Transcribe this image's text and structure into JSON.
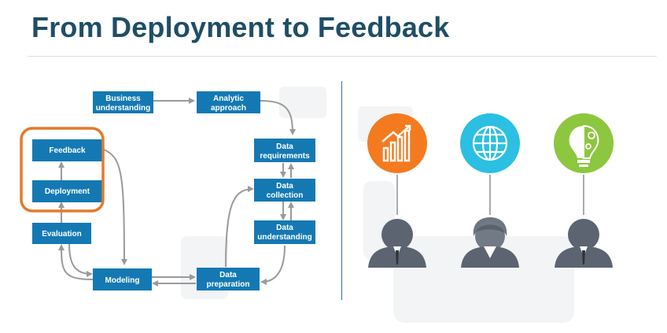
{
  "slide": {
    "title": "From Deployment to Feedback"
  },
  "diagram": {
    "stages": {
      "business_understanding": [
        "Business",
        "understanding"
      ],
      "analytic_approach": [
        "Analytic",
        "approach"
      ],
      "data_requirements": [
        "Data",
        "requirements"
      ],
      "data_collection": [
        "Data",
        "collection"
      ],
      "data_understanding": [
        "Data",
        "understanding"
      ],
      "data_preparation": [
        "Data",
        "preparation"
      ],
      "modeling": [
        "Modeling"
      ],
      "evaluation": [
        "Evaluation"
      ],
      "deployment": [
        "Deployment"
      ],
      "feedback": [
        "Feedback"
      ]
    },
    "highlight_color": "#e07b2c",
    "box_color": "#1479b3"
  },
  "people": [
    {
      "icon": "growth-chart-icon",
      "color": "#f47a20"
    },
    {
      "icon": "globe-icon",
      "color": "#2bbfe3"
    },
    {
      "icon": "lightbulb-icon",
      "color": "#8dc63f"
    }
  ]
}
